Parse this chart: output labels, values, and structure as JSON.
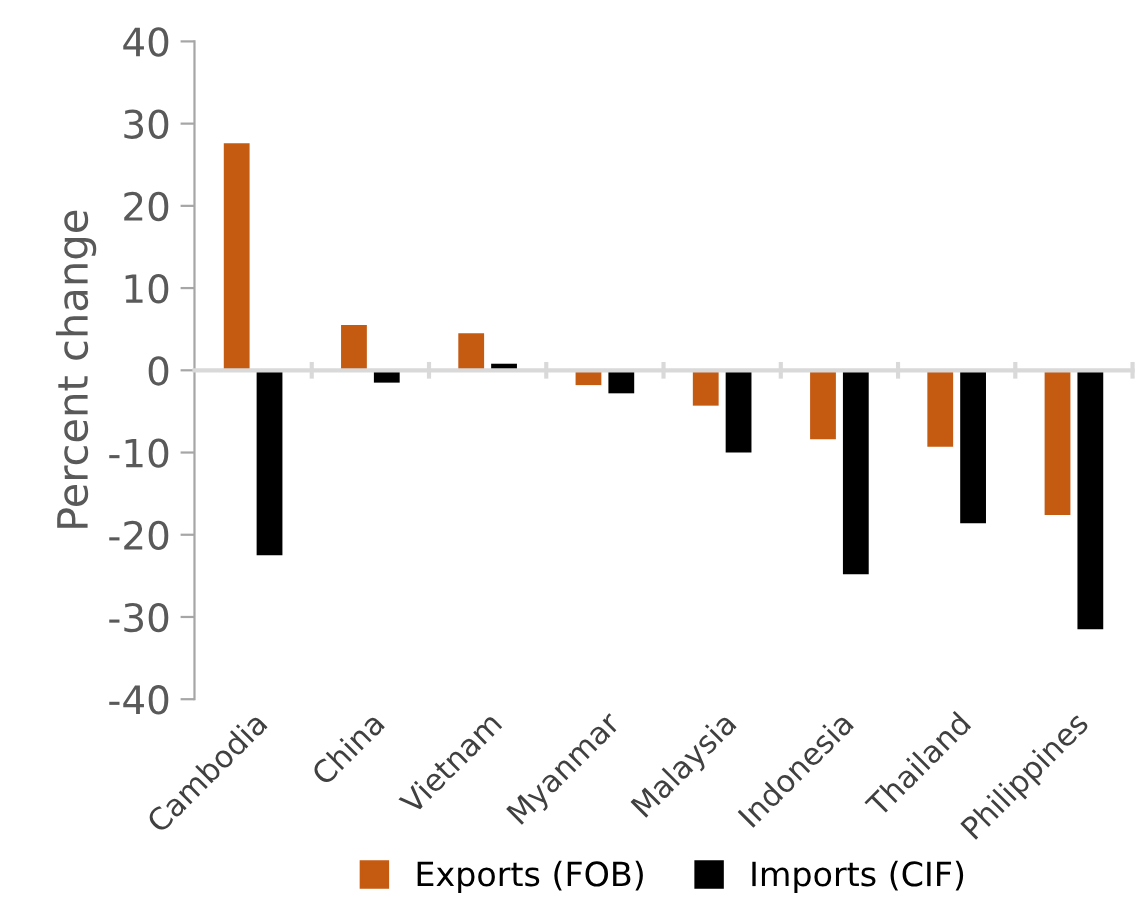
{
  "chart_data": {
    "type": "bar",
    "ylabel": "Percent change",
    "categories": [
      "Cambodia",
      "China",
      "Vietnam",
      "Myanmar",
      "Malaysia",
      "Indonesia",
      "Thailand",
      "Philippines"
    ],
    "series": [
      {
        "name": "Exports (FOB)",
        "color": "#c55a11",
        "values": [
          27.6,
          5.5,
          4.5,
          -1.8,
          -4.3,
          -8.4,
          -9.3,
          -17.6
        ]
      },
      {
        "name": "Imports (CIF)",
        "color": "#000000",
        "values": [
          -22.5,
          -1.5,
          0.8,
          -2.8,
          -10.0,
          -24.8,
          -18.6,
          -31.5
        ]
      }
    ],
    "ylim": [
      -40,
      40
    ],
    "yticks": [
      -40,
      -30,
      -20,
      -10,
      0,
      10,
      20,
      30,
      40
    ],
    "legend": "bottom"
  }
}
